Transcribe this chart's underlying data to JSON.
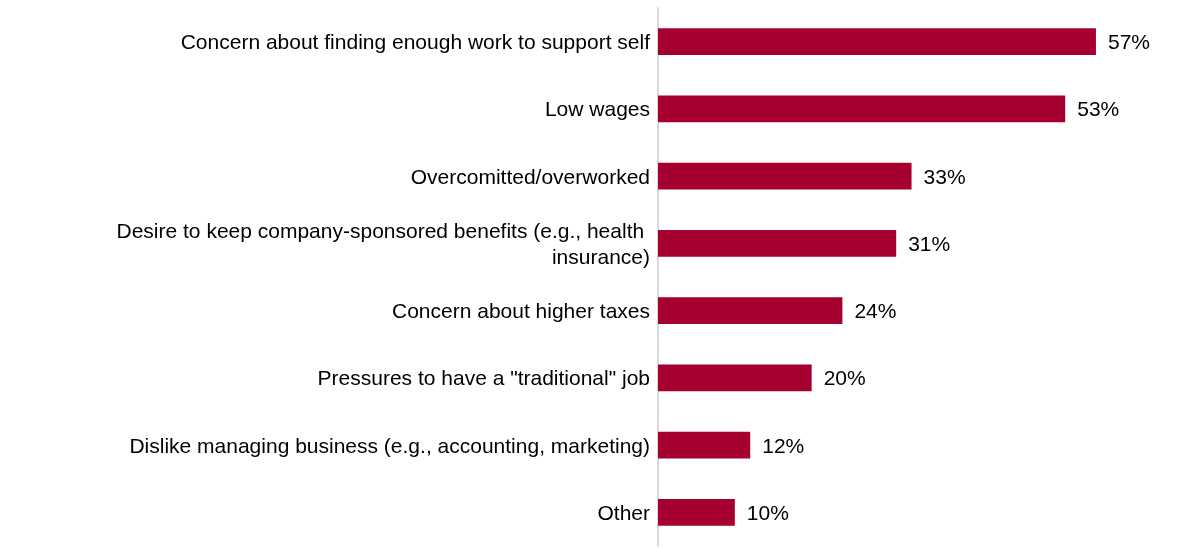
{
  "chart_data": {
    "type": "bar",
    "orientation": "horizontal",
    "categories": [
      "Concern about finding enough work to support self",
      "Low wages",
      "Overcomitted/overworked",
      "Desire to keep company-sponsored benefits (e.g., health insurance)",
      "Concern about higher taxes",
      "Pressures to have a \"traditional\" job",
      "Dislike managing business (e.g., accounting, marketing)",
      "Other"
    ],
    "values": [
      57,
      53,
      33,
      31,
      24,
      20,
      12,
      10
    ],
    "value_labels": [
      "57%",
      "53%",
      "33%",
      "31%",
      "24%",
      "20%",
      "12%",
      "10%"
    ],
    "color": "#a50030"
  }
}
